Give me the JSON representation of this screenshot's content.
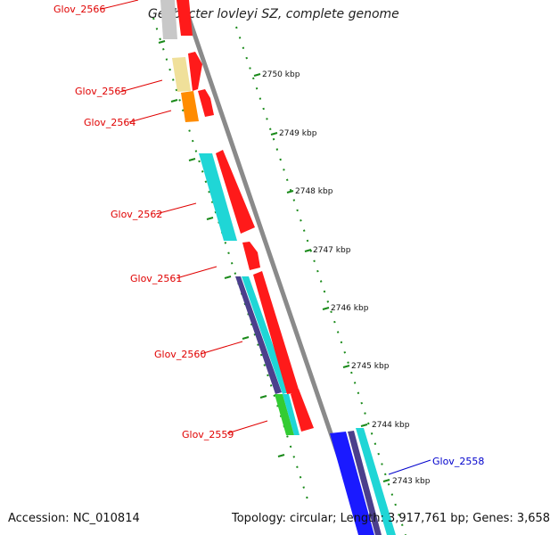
{
  "title": "Geobacter lovleyi SZ, complete genome",
  "footer": {
    "accession": "Accession: NC_010814",
    "stats": "Topology: circular; Length: 3,917,761 bp; Genes: 3,658"
  },
  "kbp_labels": [
    "2750 kbp",
    "2749 kbp",
    "2748 kbp",
    "2747 kbp",
    "2746 kbp",
    "2745 kbp",
    "2744 kbp",
    "2743 kbp"
  ],
  "gene_labels": {
    "glov_2566": "Glov_2566",
    "glov_2565": "Glov_2565",
    "glov_2564": "Glov_2564",
    "glov_2562": "Glov_2562",
    "glov_2561": "Glov_2561",
    "glov_2560": "Glov_2560",
    "glov_2559": "Glov_2559",
    "glov_2558": "Glov_2558"
  },
  "colors": {
    "backbone": "#8a8a8a",
    "gene_red": "#ff1a1a",
    "cyan": "#1fd6d6",
    "purple": "#4b3f8c",
    "green": "#33cc33",
    "blue": "#1a1aff",
    "tick": "#1a8a1a"
  }
}
